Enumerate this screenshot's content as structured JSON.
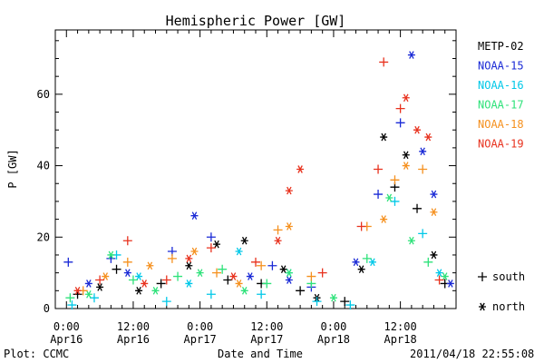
{
  "chart_data": {
    "type": "scatter",
    "title": "Hemispheric Power [GW]",
    "ylabel": "P [GW]",
    "xlabel": "Date and Time",
    "xlim": [
      "2011-04-15T22:00",
      "2011-04-18T22:00"
    ],
    "ylim": [
      0,
      78
    ],
    "y_ticks": [
      0,
      20,
      40,
      60
    ],
    "x_ticks": [
      {
        "time": "2011-04-16T00:00",
        "line1": "0:00",
        "line2": "Apr16"
      },
      {
        "time": "2011-04-16T12:00",
        "line1": "12:00",
        "line2": "Apr16"
      },
      {
        "time": "2011-04-17T00:00",
        "line1": "0:00",
        "line2": "Apr17"
      },
      {
        "time": "2011-04-17T12:00",
        "line1": "12:00",
        "line2": "Apr17"
      },
      {
        "time": "2011-04-18T00:00",
        "line1": "0:00",
        "line2": "Apr18"
      },
      {
        "time": "2011-04-18T12:00",
        "line1": "12:00",
        "line2": "Apr18"
      }
    ],
    "marker_legend": [
      {
        "marker": "plus",
        "label": "south"
      },
      {
        "marker": "star",
        "label": "north"
      }
    ],
    "series": [
      {
        "name": "METP-02",
        "color": "#000000",
        "points": [
          [
            "2011-04-16T02:00",
            4,
            "plus"
          ],
          [
            "2011-04-16T06:00",
            6,
            "star"
          ],
          [
            "2011-04-16T09:00",
            11,
            "plus"
          ],
          [
            "2011-04-16T13:00",
            5,
            "star"
          ],
          [
            "2011-04-16T17:00",
            7,
            "plus"
          ],
          [
            "2011-04-16T22:00",
            12,
            "star"
          ],
          [
            "2011-04-17T03:00",
            18,
            "star"
          ],
          [
            "2011-04-17T05:00",
            8,
            "plus"
          ],
          [
            "2011-04-17T08:00",
            19,
            "star"
          ],
          [
            "2011-04-17T11:00",
            7,
            "plus"
          ],
          [
            "2011-04-17T15:00",
            11,
            "star"
          ],
          [
            "2011-04-17T18:00",
            5,
            "plus"
          ],
          [
            "2011-04-17T21:00",
            3,
            "star"
          ],
          [
            "2011-04-18T02:00",
            2,
            "plus"
          ],
          [
            "2011-04-18T05:00",
            11,
            "star"
          ],
          [
            "2011-04-18T09:00",
            48,
            "star"
          ],
          [
            "2011-04-18T11:00",
            34,
            "plus"
          ],
          [
            "2011-04-18T13:00",
            43,
            "star"
          ],
          [
            "2011-04-18T15:00",
            28,
            "plus"
          ],
          [
            "2011-04-18T18:00",
            15,
            "star"
          ],
          [
            "2011-04-18T20:00",
            7,
            "plus"
          ]
        ]
      },
      {
        "name": "NOAA-15",
        "color": "#1a2ad6",
        "points": [
          [
            "2011-04-16T00:20",
            13,
            "plus"
          ],
          [
            "2011-04-16T04:00",
            7,
            "star"
          ],
          [
            "2011-04-16T08:00",
            14,
            "plus"
          ],
          [
            "2011-04-16T11:00",
            10,
            "star"
          ],
          [
            "2011-04-16T19:00",
            16,
            "plus"
          ],
          [
            "2011-04-16T23:00",
            26,
            "star"
          ],
          [
            "2011-04-17T02:00",
            20,
            "plus"
          ],
          [
            "2011-04-17T09:00",
            9,
            "star"
          ],
          [
            "2011-04-17T13:00",
            12,
            "plus"
          ],
          [
            "2011-04-17T16:00",
            8,
            "star"
          ],
          [
            "2011-04-17T20:00",
            6,
            "plus"
          ],
          [
            "2011-04-18T04:00",
            13,
            "star"
          ],
          [
            "2011-04-18T08:00",
            32,
            "plus"
          ],
          [
            "2011-04-18T12:00",
            52,
            "plus"
          ],
          [
            "2011-04-18T14:00",
            71,
            "star"
          ],
          [
            "2011-04-18T16:00",
            44,
            "star"
          ],
          [
            "2011-04-18T18:00",
            32,
            "star"
          ],
          [
            "2011-04-18T21:00",
            7,
            "star"
          ]
        ]
      },
      {
        "name": "NOAA-16",
        "color": "#00c8e8",
        "points": [
          [
            "2011-04-16T01:00",
            1,
            "plus"
          ],
          [
            "2011-04-16T05:00",
            3,
            "plus"
          ],
          [
            "2011-04-16T09:00",
            15,
            "plus"
          ],
          [
            "2011-04-16T13:00",
            9,
            "star"
          ],
          [
            "2011-04-16T18:00",
            2,
            "plus"
          ],
          [
            "2011-04-16T22:00",
            7,
            "star"
          ],
          [
            "2011-04-17T02:00",
            4,
            "plus"
          ],
          [
            "2011-04-17T07:00",
            16,
            "star"
          ],
          [
            "2011-04-17T11:00",
            4,
            "plus"
          ],
          [
            "2011-04-17T16:00",
            10,
            "star"
          ],
          [
            "2011-04-17T21:00",
            2,
            "plus"
          ],
          [
            "2011-04-18T03:00",
            1,
            "plus"
          ],
          [
            "2011-04-18T07:00",
            13,
            "star"
          ],
          [
            "2011-04-18T11:00",
            30,
            "plus"
          ],
          [
            "2011-04-18T16:00",
            21,
            "plus"
          ],
          [
            "2011-04-18T19:00",
            10,
            "star"
          ]
        ]
      },
      {
        "name": "NOAA-17",
        "color": "#2ee27a",
        "points": [
          [
            "2011-04-16T00:40",
            3,
            "plus"
          ],
          [
            "2011-04-16T04:00",
            4,
            "star"
          ],
          [
            "2011-04-16T08:00",
            15,
            "star"
          ],
          [
            "2011-04-16T12:00",
            8,
            "plus"
          ],
          [
            "2011-04-16T16:00",
            5,
            "star"
          ],
          [
            "2011-04-16T20:00",
            9,
            "plus"
          ],
          [
            "2011-04-17T00:00",
            10,
            "star"
          ],
          [
            "2011-04-17T04:00",
            11,
            "plus"
          ],
          [
            "2011-04-17T08:00",
            5,
            "star"
          ],
          [
            "2011-04-17T12:00",
            7,
            "plus"
          ],
          [
            "2011-04-17T16:00",
            10,
            "star"
          ],
          [
            "2011-04-17T20:00",
            7,
            "plus"
          ],
          [
            "2011-04-18T00:00",
            3,
            "star"
          ],
          [
            "2011-04-18T06:00",
            14,
            "plus"
          ],
          [
            "2011-04-18T10:00",
            31,
            "star"
          ],
          [
            "2011-04-18T14:00",
            19,
            "star"
          ],
          [
            "2011-04-18T17:00",
            13,
            "plus"
          ],
          [
            "2011-04-18T20:00",
            9,
            "star"
          ]
        ]
      },
      {
        "name": "NOAA-18",
        "color": "#f5901e",
        "points": [
          [
            "2011-04-16T03:00",
            5,
            "plus"
          ],
          [
            "2011-04-16T07:00",
            9,
            "star"
          ],
          [
            "2011-04-16T11:00",
            13,
            "plus"
          ],
          [
            "2011-04-16T15:00",
            12,
            "star"
          ],
          [
            "2011-04-16T19:00",
            14,
            "plus"
          ],
          [
            "2011-04-16T23:00",
            16,
            "star"
          ],
          [
            "2011-04-17T03:00",
            10,
            "plus"
          ],
          [
            "2011-04-17T07:00",
            7,
            "star"
          ],
          [
            "2011-04-17T11:00",
            12,
            "plus"
          ],
          [
            "2011-04-17T14:00",
            22,
            "plus"
          ],
          [
            "2011-04-17T16:00",
            23,
            "star"
          ],
          [
            "2011-04-17T20:00",
            9,
            "plus"
          ],
          [
            "2011-04-18T06:00",
            23,
            "plus"
          ],
          [
            "2011-04-18T09:00",
            25,
            "star"
          ],
          [
            "2011-04-18T11:00",
            36,
            "plus"
          ],
          [
            "2011-04-18T13:00",
            40,
            "star"
          ],
          [
            "2011-04-18T16:00",
            39,
            "plus"
          ],
          [
            "2011-04-18T18:00",
            27,
            "star"
          ]
        ]
      },
      {
        "name": "NOAA-19",
        "color": "#e8321e",
        "points": [
          [
            "2011-04-16T02:00",
            5,
            "star"
          ],
          [
            "2011-04-16T06:00",
            8,
            "plus"
          ],
          [
            "2011-04-16T11:00",
            19,
            "plus"
          ],
          [
            "2011-04-16T14:00",
            7,
            "star"
          ],
          [
            "2011-04-16T18:00",
            8,
            "plus"
          ],
          [
            "2011-04-16T22:00",
            14,
            "star"
          ],
          [
            "2011-04-17T02:00",
            17,
            "plus"
          ],
          [
            "2011-04-17T06:00",
            9,
            "star"
          ],
          [
            "2011-04-17T10:00",
            13,
            "plus"
          ],
          [
            "2011-04-17T14:00",
            19,
            "star"
          ],
          [
            "2011-04-17T16:00",
            33,
            "star"
          ],
          [
            "2011-04-17T18:00",
            39,
            "star"
          ],
          [
            "2011-04-17T22:00",
            10,
            "plus"
          ],
          [
            "2011-04-18T05:00",
            23,
            "plus"
          ],
          [
            "2011-04-18T08:00",
            39,
            "plus"
          ],
          [
            "2011-04-18T09:00",
            69,
            "plus"
          ],
          [
            "2011-04-18T12:00",
            56,
            "plus"
          ],
          [
            "2011-04-18T13:00",
            59,
            "star"
          ],
          [
            "2011-04-18T15:00",
            50,
            "star"
          ],
          [
            "2011-04-18T17:00",
            48,
            "star"
          ],
          [
            "2011-04-18T19:00",
            8,
            "plus"
          ]
        ]
      }
    ]
  },
  "footer": {
    "left": "Plot: CCMC",
    "right": "2011/04/18 22:55:08"
  }
}
